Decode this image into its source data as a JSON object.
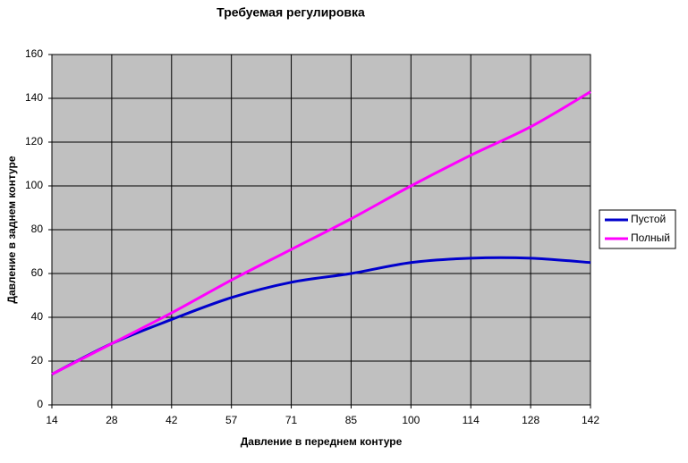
{
  "chart_data": {
    "type": "line",
    "title": "Требуемая регулировка",
    "x_label": "Давление в переднем контуре",
    "y_label": "Давление в заднем контуре",
    "categories": [
      "14",
      "28",
      "42",
      "57",
      "71",
      "85",
      "100",
      "114",
      "128",
      "142"
    ],
    "series": [
      {
        "name": "Пустой",
        "color": "#0000cc",
        "values": [
          14,
          28,
          39,
          49,
          56,
          60,
          65,
          67,
          67,
          65
        ]
      },
      {
        "name": "Полный",
        "color": "#ff00ff",
        "values": [
          14,
          28,
          42,
          57,
          71,
          85,
          100,
          114,
          127,
          143
        ]
      }
    ],
    "ylim": [
      0,
      160
    ],
    "yticks": [
      0,
      20,
      40,
      60,
      80,
      100,
      120,
      140,
      160
    ],
    "grid": true,
    "legend": "right",
    "smooth": true
  }
}
